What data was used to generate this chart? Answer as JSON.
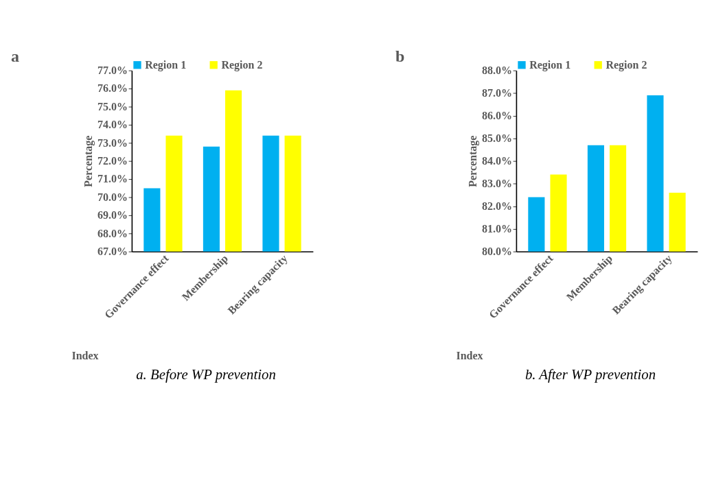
{
  "chart_data": [
    {
      "type": "bar",
      "title": "a",
      "xlabel": "Index",
      "ylabel": "Percentage",
      "categories": [
        "Governance effect",
        "Membership",
        "Bearing capacity"
      ],
      "series": [
        {
          "name": "Region 1",
          "color": "#00b0f0",
          "values": [
            70.5,
            72.8,
            73.4
          ]
        },
        {
          "name": "Region 2",
          "color": "#ffff00",
          "values": [
            73.4,
            75.9,
            73.4
          ]
        }
      ],
      "ylim": [
        67,
        77
      ],
      "yticks": [
        {
          "value": 67,
          "label": "67.0%"
        },
        {
          "value": 68,
          "label": "68.0%"
        },
        {
          "value": 69,
          "label": "69.0%"
        },
        {
          "value": 70,
          "label": "70.0%"
        },
        {
          "value": 71,
          "label": "71.0%"
        },
        {
          "value": 72,
          "label": "72.0%"
        },
        {
          "value": 73,
          "label": "73.0%"
        },
        {
          "value": 74,
          "label": "74.0%"
        },
        {
          "value": 75,
          "label": "75.0%"
        },
        {
          "value": 76,
          "label": "76.0%"
        },
        {
          "value": 77,
          "label": "77.0%"
        }
      ],
      "legend": "top",
      "annotations": [
        "a. Before WP prevention"
      ]
    },
    {
      "type": "bar",
      "title": "b",
      "xlabel": "Index",
      "ylabel": "Percentage",
      "categories": [
        "Governance effect",
        "Membership",
        "Bearing capacity"
      ],
      "series": [
        {
          "name": "Region 1",
          "color": "#00b0f0",
          "values": [
            82.4,
            84.7,
            86.9
          ]
        },
        {
          "name": "Region 2",
          "color": "#ffff00",
          "values": [
            83.4,
            84.7,
            82.6
          ]
        }
      ],
      "ylim": [
        80,
        88
      ],
      "yticks": [
        {
          "value": 80,
          "label": "80.0%"
        },
        {
          "value": 81,
          "label": "81.0%"
        },
        {
          "value": 82,
          "label": "82.0%"
        },
        {
          "value": 83,
          "label": "83.0%"
        },
        {
          "value": 84,
          "label": "84.0%"
        },
        {
          "value": 85,
          "label": "85.0%"
        },
        {
          "value": 86,
          "label": "86.0%"
        },
        {
          "value": 87,
          "label": "87.0%"
        },
        {
          "value": 88,
          "label": "88.0%"
        }
      ],
      "legend": "top",
      "annotations": [
        "b. After WP prevention"
      ]
    }
  ]
}
